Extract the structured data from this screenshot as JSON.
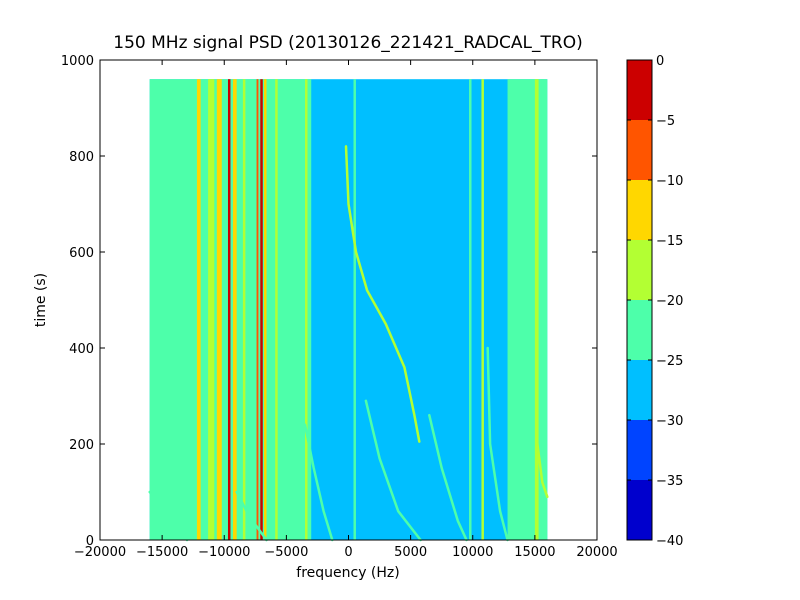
{
  "chart_data": {
    "type": "heatmap",
    "title": "150 MHz signal PSD (20130126_221421_RADCAL_TRO)",
    "xlabel": "frequency (Hz)",
    "ylabel": "time (s)",
    "xlim": [
      -20000,
      20000
    ],
    "ylim": [
      0,
      1000
    ],
    "data_extent": {
      "x": [
        -16000,
        16000
      ],
      "y": [
        0,
        960
      ]
    },
    "xticks": [
      -20000,
      -15000,
      -10000,
      -5000,
      0,
      5000,
      10000,
      15000,
      20000
    ],
    "yticks": [
      0,
      200,
      400,
      600,
      800,
      1000
    ],
    "colorbar": {
      "levels": [
        -40,
        -35,
        -30,
        -25,
        -20,
        -15,
        -10,
        -5,
        0
      ],
      "ticks": [
        0,
        -5,
        -10,
        -15,
        -20,
        -25,
        -30,
        -35,
        -40
      ],
      "colors": [
        "#0000cd",
        "#0044ff",
        "#00bfff",
        "#4dffaa",
        "#b3ff33",
        "#ffd700",
        "#ff5500",
        "#cc0000"
      ]
    },
    "background_level": -27.5,
    "vertical_bands": [
      {
        "x": [
          -16000,
          -3000
        ],
        "level": -22.5
      },
      {
        "x": [
          -12200,
          -11900
        ],
        "level": -12.5
      },
      {
        "x": [
          -11300,
          -10800
        ],
        "level": -17.5
      },
      {
        "x": [
          -10600,
          -10200
        ],
        "level": -12.5
      },
      {
        "x": [
          -9700,
          -9500
        ],
        "level": -2.5
      },
      {
        "x": [
          -9300,
          -9000
        ],
        "level": -12.5
      },
      {
        "x": [
          -8500,
          -8300
        ],
        "level": -17.5
      },
      {
        "x": [
          -7400,
          -7250
        ],
        "level": -7.5
      },
      {
        "x": [
          -7100,
          -6900
        ],
        "level": -2.5
      },
      {
        "x": [
          -6800,
          -6600
        ],
        "level": -12.5
      },
      {
        "x": [
          -5900,
          -5700
        ],
        "level": -17.5
      },
      {
        "x": [
          -3500,
          -3300
        ],
        "level": -17.5
      },
      {
        "x": [
          400,
          600
        ],
        "level": -22.5
      },
      {
        "x": [
          9700,
          9900
        ],
        "level": -22.5
      },
      {
        "x": [
          10700,
          10900
        ],
        "level": -17.5
      },
      {
        "x": [
          12800,
          16000
        ],
        "level": -22.5
      },
      {
        "x": [
          15000,
          15300
        ],
        "level": -17.5
      },
      {
        "x": [
          15500,
          15700
        ],
        "level": -22.5
      }
    ],
    "tracks": [
      {
        "level": -17.5,
        "points": [
          [
            -200,
            820
          ],
          [
            0,
            700
          ],
          [
            600,
            600
          ],
          [
            1500,
            520
          ],
          [
            3000,
            450
          ],
          [
            4500,
            360
          ],
          [
            5300,
            260
          ],
          [
            5700,
            205
          ]
        ]
      },
      {
        "level": -22.5,
        "points": [
          [
            -3500,
            240
          ],
          [
            -2800,
            150
          ],
          [
            -2000,
            60
          ],
          [
            -1300,
            0
          ]
        ]
      },
      {
        "level": -22.5,
        "points": [
          [
            1400,
            290
          ],
          [
            2500,
            170
          ],
          [
            4000,
            60
          ],
          [
            5800,
            0
          ]
        ]
      },
      {
        "level": -22.5,
        "points": [
          [
            6500,
            260
          ],
          [
            7500,
            150
          ],
          [
            8800,
            40
          ],
          [
            9500,
            0
          ]
        ]
      },
      {
        "level": -22.5,
        "points": [
          [
            11200,
            400
          ],
          [
            11400,
            200
          ],
          [
            12200,
            60
          ],
          [
            12800,
            0
          ]
        ]
      },
      {
        "level": -22.5,
        "points": [
          [
            -16000,
            100
          ],
          [
            -14500,
            50
          ],
          [
            -13000,
            0
          ]
        ]
      },
      {
        "level": -22.5,
        "points": [
          [
            -9000,
            100
          ],
          [
            -8000,
            50
          ],
          [
            -6600,
            0
          ]
        ]
      },
      {
        "level": -17.5,
        "points": [
          [
            15200,
            200
          ],
          [
            15600,
            120
          ],
          [
            16000,
            90
          ]
        ]
      }
    ]
  }
}
